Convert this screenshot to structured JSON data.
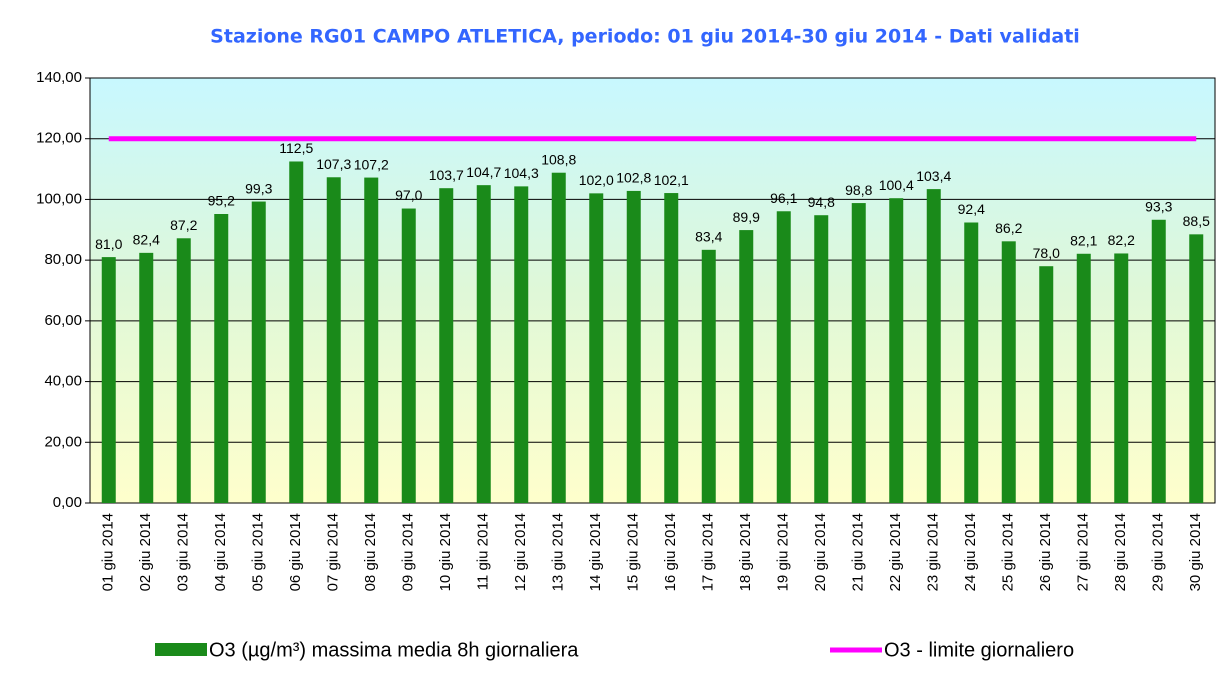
{
  "chart_data": {
    "type": "bar",
    "title": "Stazione RG01 CAMPO ATLETICA, periodo: 01 giu 2014-30 giu 2014 - Dati validati",
    "categories": [
      "01 giu 2014",
      "02 giu 2014",
      "03 giu 2014",
      "04 giu 2014",
      "05 giu 2014",
      "06 giu 2014",
      "07 giu 2014",
      "08 giu 2014",
      "09 giu 2014",
      "10 giu 2014",
      "11 giu 2014",
      "12 giu 2014",
      "13 giu 2014",
      "14 giu 2014",
      "15 giu 2014",
      "16 giu 2014",
      "17 giu 2014",
      "18 giu 2014",
      "19 giu 2014",
      "20 giu 2014",
      "21 giu 2014",
      "22 giu 2014",
      "23 giu 2014",
      "24 giu 2014",
      "25 giu 2014",
      "26 giu 2014",
      "27 giu 2014",
      "28 giu 2014",
      "29 giu 2014",
      "30 giu 2014"
    ],
    "series": [
      {
        "name": "O3 (µg/m³) massima media 8h giornaliera",
        "type": "bar",
        "color": "#1a8a1a",
        "values": [
          81.0,
          82.4,
          87.2,
          95.2,
          99.3,
          112.5,
          107.3,
          107.2,
          97.0,
          103.7,
          104.7,
          104.3,
          108.8,
          102.0,
          102.8,
          102.1,
          83.4,
          89.9,
          96.1,
          94.8,
          98.8,
          100.4,
          103.4,
          92.4,
          86.2,
          78.0,
          82.1,
          82.2,
          93.3,
          88.5
        ],
        "value_labels": [
          "81,0",
          "82,4",
          "87,2",
          "95,2",
          "99,3",
          "112,5",
          "107,3",
          "107,2",
          "97,0",
          "103,7",
          "104,7",
          "104,3",
          "108,8",
          "102,0",
          "102,8",
          "102,1",
          "83,4",
          "89,9",
          "96,1",
          "94,8",
          "98,8",
          "100,4",
          "103,4",
          "92,4",
          "86,2",
          "78,0",
          "82,1",
          "82,2",
          "93,3",
          "88,5"
        ]
      },
      {
        "name": "O3 - limite giornaliero",
        "type": "line",
        "color": "#ff00ff",
        "values": [
          120,
          120,
          120,
          120,
          120,
          120,
          120,
          120,
          120,
          120,
          120,
          120,
          120,
          120,
          120,
          120,
          120,
          120,
          120,
          120,
          120,
          120,
          120,
          120,
          120,
          120,
          120,
          120,
          120,
          120
        ]
      }
    ],
    "ylim": [
      0,
      140
    ],
    "yticks": [
      {
        "value": 0,
        "label": "0,00"
      },
      {
        "value": 20,
        "label": "20,00"
      },
      {
        "value": 40,
        "label": "40,00"
      },
      {
        "value": 60,
        "label": "60,00"
      },
      {
        "value": 80,
        "label": "80,00"
      },
      {
        "value": 100,
        "label": "100,00"
      },
      {
        "value": 120,
        "label": "120,00"
      },
      {
        "value": 140,
        "label": "140,00"
      }
    ],
    "grid": true
  }
}
